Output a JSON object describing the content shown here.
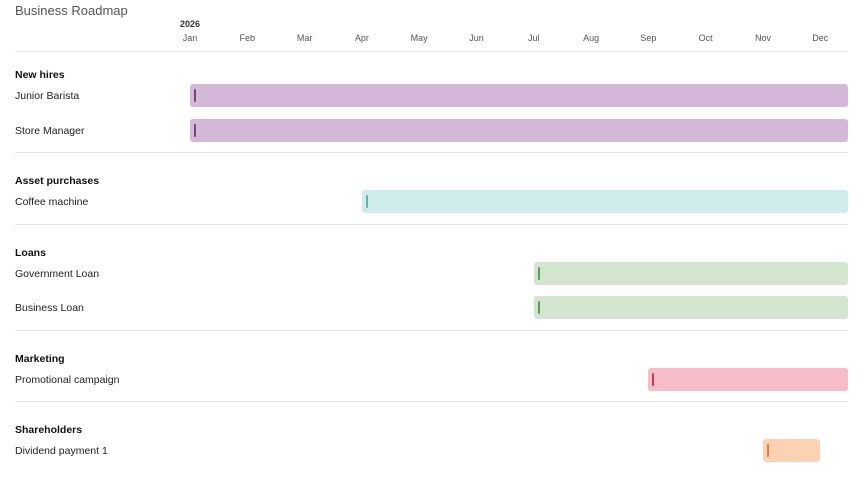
{
  "header": {
    "title": "Business Roadmap",
    "year": "2026",
    "months": [
      "Jan",
      "Feb",
      "Mar",
      "Apr",
      "May",
      "Jun",
      "Jul",
      "Aug",
      "Sep",
      "Oct",
      "Nov",
      "Dec"
    ]
  },
  "groups": [
    {
      "heading": "New hires",
      "color": "#d4b8d8",
      "mark_color": "#7b3f86",
      "tasks": [
        {
          "label": "Junior Barista",
          "start": "Jan",
          "end": "Dec"
        },
        {
          "label": "Store Manager",
          "start": "Jan",
          "end": "Dec"
        }
      ]
    },
    {
      "heading": "Asset purchases",
      "color": "#cfecec",
      "mark_color": "#5fb5a8",
      "tasks": [
        {
          "label": "Coffee machine",
          "start": "Apr",
          "end": "Dec"
        }
      ]
    },
    {
      "heading": "Loans",
      "color": "#d1e5cf",
      "mark_color": "#5c9e58",
      "tasks": [
        {
          "label": "Government Loan",
          "start": "Jul",
          "end": "Dec"
        },
        {
          "label": "Business Loan",
          "start": "Jul",
          "end": "Dec"
        }
      ]
    },
    {
      "heading": "Marketing",
      "color": "#f6bcc7",
      "mark_color": "#cc3a55",
      "tasks": [
        {
          "label": "Promotional campaign",
          "start": "Sep",
          "end": "Dec"
        }
      ]
    },
    {
      "heading": "Shareholders",
      "color": "#fdd2b3",
      "mark_color": "#e87d35",
      "tasks": [
        {
          "label": "Dividend payment 1",
          "start": "Nov",
          "end": "Nov"
        }
      ]
    }
  ]
}
